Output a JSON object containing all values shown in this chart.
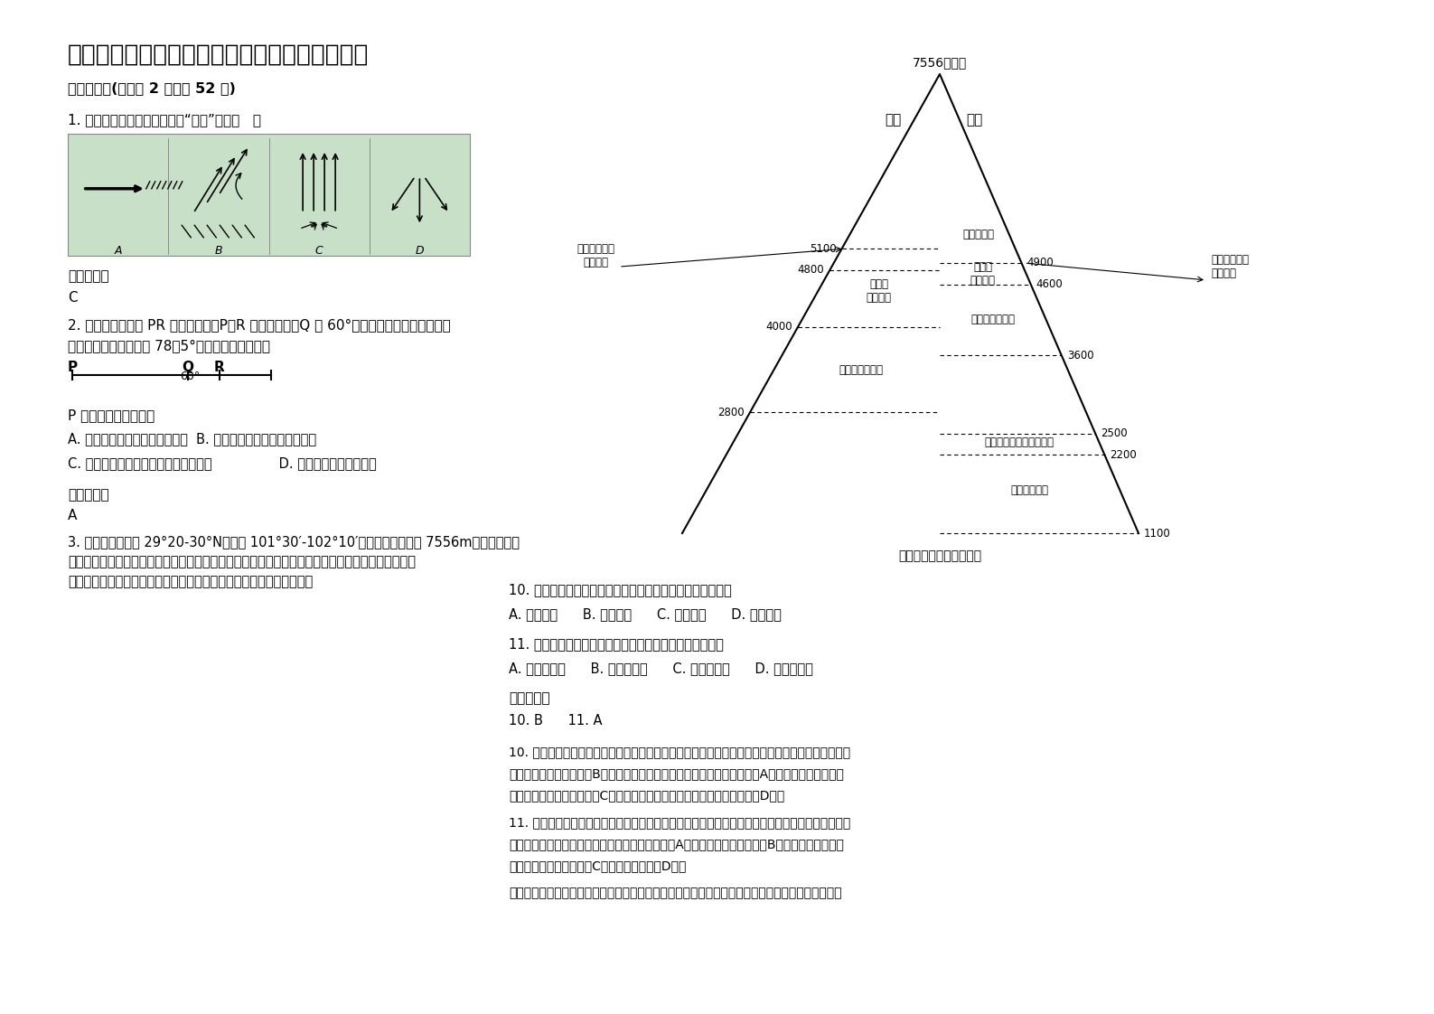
{
  "title": "安徽省阜阳市新集中学高三地理期末试题含解析",
  "section1": "一、选择题(每小题 2 分，共 52 分)",
  "q1": "1. 下列各天气系统能表示台风“桑美”的是（   ）",
  "q1_ans_label": "参考答案：",
  "q1_ans": "C",
  "q2_text_1": "2. 有一条纬线穿过 PR 之间的大陆，P、R 以外是海洋，Q 是 60°经线与该纬线的交点，此地",
  "q2_text_2": "年最大正午太阳高度为 78．5°，且日影朝南。回答",
  "q2_p_label": "P 地沿岸的气候特征是",
  "q2_choice_1": "A. 冬季温和多雨，夏季炎热干燥  B. 终年温和湿润，气温年较差小",
  "q2_choice_2": "C. 冬冷夏热，降水较少，气温年较差大                D. 全年高温，干湿季分明",
  "q2_ans_label": "参考答案：",
  "q2_ans": "A",
  "q3_text_1": "3. 贡嘎山地区位于 29°20-30°N，东经 101°30′-102°10′之间，主峰海拔高 7556m，是青藏高原",
  "q3_text_2": "东南缘横断山系的最高峰。东坡地表破碎，系高山峡谷地貌；西坡呈残山绵延的高原宽谷景观，属青",
  "q3_text_3": "藏高原一部分。右图为贡嘎山地区植被垂直带谱，读图完成下面小题。",
  "diagram_peak": "7556（米）",
  "diagram_west": "西坡",
  "diagram_east": "东坡",
  "diagram_top_zone": "永久冰雪带",
  "diagram_bottom": "贡嘎山地区植被垂直带谱",
  "west_label_5100": "高山流石滩稀\n疏植被带",
  "west_label_4800": "高山灌\n丛草甸带",
  "west_label_4000": "亚高山针叶林带",
  "east_label_4900": "高山流石滩稀\n疏植被带",
  "east_label_4600": "高山灌\n丛草甸带",
  "east_label_3600": "亚高山针叶林带",
  "east_label_2500": "山地针叶、阔叶混交林带",
  "east_label_2200": "常绿阔叶林带",
  "center_label_4700": "高山灌\n丛草甸带",
  "center_label_4000_east": "高山灌\n丛草甸带",
  "center_label_3200": "亚高山针叶林带",
  "center_label_2350": "山地针叶、阔叶混交林带",
  "center_label_1650": "常绿阔叶林带",
  "q10": "10. 东坡山地针叶、阔叶混交林带分布面积较小的原因可能是",
  "q10_choices": "A. 降水较少      B. 坡度较大      C. 热量充足      D. 光照较少",
  "q11": "11. 与东坡相比，西坡亚高山针叶林带分布海拔高的原因是",
  "q11_choices": "A. 年平均温高      B. 年降水量多      C. 距离海洋近      D. 云雾天数多",
  "q1011_ans_label": "参考答案：",
  "q1011_ans": "10. B      11. A",
  "q10_expl": "10. 东坡地表破碎，系高山峡谷地貌。东坡山地针叶、阔叶混交林带分布面积较小的原因可能是坡度",
  "q10_expl2": "较大，不利于植被生长，B对。东坡是东南季风迎风坡，森林带降水较多，A错。热量充足利于森林",
  "q10_expl3": "生长，不是面积小的原因，C错。同侧林地光照相似，光照不是主要原因，D错。",
  "q11_expl": "11. 与东坡相比，西坡属于青藏高原的一部分，受夏季风影响小，晴天多，相同海拔处，气温较高。",
  "q11_expl2": "亚高山针叶林带分布海拔高的原因是年平均温高，A对。西坡年降水量较少，B错。距离海洋远近差",
  "q11_expl3": "异不大，不是主要因素，C错。云雾天数少，D错。",
  "extra": "点睛：东坡地表破碎，系高山峡谷地貌。山体坡度较大，土壤层薄，不利于植被生长。同一侧山体，",
  "bg_color": "#ffffff",
  "img_bg_color": "#c8dfc8",
  "west_alts": [
    5100,
    4800,
    4000,
    2800
  ],
  "east_alts": [
    4900,
    4600,
    3600,
    2500,
    2200,
    1100
  ],
  "alt_min": 1100,
  "alt_max": 7556
}
